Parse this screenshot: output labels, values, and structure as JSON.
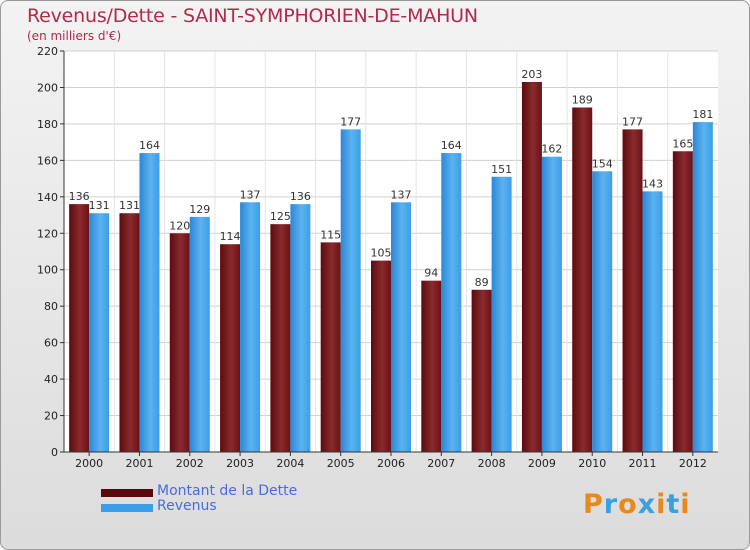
{
  "title": "Revenus/Dette - SAINT-SYMPHORIEN-DE-MAHUN",
  "subtitle": "(en milliers d'€)",
  "colors": {
    "dette": "#7a1a1e",
    "revenus": "#3a9ee8",
    "title": "#b2294a",
    "legend_text": "#4a6be0"
  },
  "legend": [
    {
      "label": "Montant de la Dette",
      "color": "#5a0a0c"
    },
    {
      "label": "Revenus",
      "color": "#3a9ee8"
    }
  ],
  "logo": {
    "text": "Proxiti",
    "letter_colors": [
      "#e8891c",
      "#3aa0e0",
      "#e8891c",
      "#3aa0e0",
      "#e8891c",
      "#3aa0e0",
      "#e8891c"
    ]
  },
  "chart_data": {
    "type": "bar",
    "title": "Revenus/Dette - SAINT-SYMPHORIEN-DE-MAHUN",
    "ylabel": "(en milliers d'€)",
    "xlabel": "",
    "ylim": [
      0,
      220
    ],
    "yticks": [
      0,
      20,
      40,
      60,
      80,
      100,
      120,
      140,
      160,
      180,
      200,
      220
    ],
    "grid": true,
    "categories": [
      "2000",
      "2001",
      "2002",
      "2003",
      "2004",
      "2005",
      "2006",
      "2007",
      "2008",
      "2009",
      "2010",
      "2011",
      "2012"
    ],
    "series": [
      {
        "name": "Montant de la Dette",
        "values": [
          136,
          131,
          120,
          114,
          125,
          115,
          105,
          94,
          89,
          203,
          189,
          177,
          165
        ]
      },
      {
        "name": "Revenus",
        "values": [
          131,
          164,
          129,
          137,
          136,
          177,
          137,
          164,
          151,
          162,
          154,
          143,
          181
        ]
      }
    ]
  }
}
